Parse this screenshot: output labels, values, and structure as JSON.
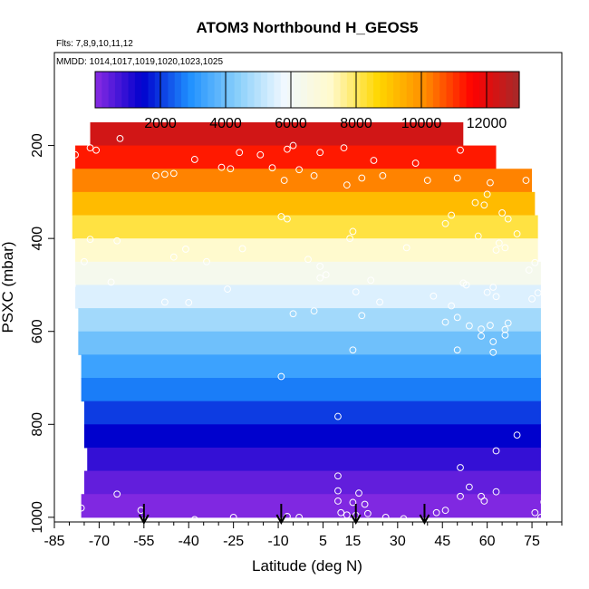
{
  "chart_data": {
    "type": "heatmap",
    "title": "ATOM3 Northbound H_GEOS5",
    "subtitle_flights": "Flts: 7,8,9,10,11,12",
    "subtitle_dates": "MMDD: 1014,1017,1019,1020,1023,1025",
    "xlabel": "Latitude (deg N)",
    "ylabel": "PSXC (mbar)",
    "xlim": [
      -85,
      85
    ],
    "ylim": [
      1010,
      0
    ],
    "x_ticks": [
      -85,
      -70,
      -55,
      -40,
      -25,
      -10,
      5,
      15,
      30,
      45,
      60,
      75
    ],
    "y_ticks": [
      200,
      400,
      600,
      800,
      1000
    ],
    "colorbar": {
      "min": 0,
      "max": 13000,
      "ticks": [
        2000,
        4000,
        6000,
        8000,
        10000,
        12000
      ],
      "colors": [
        "#8a2be2",
        "#0000cd",
        "#1e90ff",
        "#87cefa",
        "#f0f8ff",
        "#fffacd",
        "#ffd700",
        "#ff8c00",
        "#ff0000",
        "#a52a2a"
      ]
    },
    "grid": false,
    "pressure_levels_mbar": [
      175,
      225,
      275,
      325,
      375,
      425,
      475,
      525,
      575,
      625,
      675,
      725,
      775,
      825,
      875,
      925,
      975
    ],
    "altitude_values_m": [
      12300,
      11300,
      10200,
      9200,
      8200,
      7200,
      6300,
      5500,
      4700,
      4000,
      3300,
      2700,
      2050,
      1450,
      900,
      420,
      100
    ],
    "level_lat_extent": [
      [
        -73,
        52
      ],
      [
        -78,
        63
      ],
      [
        -79,
        75
      ],
      [
        -79,
        76
      ],
      [
        -79,
        77
      ],
      [
        -78,
        77
      ],
      [
        -78,
        78
      ],
      [
        -78,
        78
      ],
      [
        -77,
        78
      ],
      [
        -77,
        78
      ],
      [
        -76,
        78
      ],
      [
        -76,
        78
      ],
      [
        -75,
        78
      ],
      [
        -75,
        78
      ],
      [
        -74,
        78
      ],
      [
        -75,
        78
      ],
      [
        -76,
        78
      ]
    ],
    "profile_markers_lat": [
      -55,
      -9,
      16,
      39
    ],
    "obs_points": [
      {
        "lat": -63,
        "p": 185
      },
      {
        "lat": -71,
        "p": 210
      },
      {
        "lat": -73,
        "p": 205
      },
      {
        "lat": -78,
        "p": 220
      },
      {
        "lat": -38,
        "p": 230
      },
      {
        "lat": -23,
        "p": 215
      },
      {
        "lat": -16,
        "p": 220
      },
      {
        "lat": -5,
        "p": 200
      },
      {
        "lat": -7,
        "p": 208
      },
      {
        "lat": 4,
        "p": 215
      },
      {
        "lat": 12,
        "p": 205
      },
      {
        "lat": 22,
        "p": 232
      },
      {
        "lat": 36,
        "p": 238
      },
      {
        "lat": 51,
        "p": 210
      },
      {
        "lat": -48,
        "p": 262
      },
      {
        "lat": -51,
        "p": 265
      },
      {
        "lat": -45,
        "p": 260
      },
      {
        "lat": -29,
        "p": 247
      },
      {
        "lat": -26,
        "p": 250
      },
      {
        "lat": -12,
        "p": 248
      },
      {
        "lat": -3,
        "p": 252
      },
      {
        "lat": 2,
        "p": 265
      },
      {
        "lat": -8,
        "p": 275
      },
      {
        "lat": 18,
        "p": 270
      },
      {
        "lat": 25,
        "p": 265
      },
      {
        "lat": 13,
        "p": 285
      },
      {
        "lat": 40,
        "p": 275
      },
      {
        "lat": 50,
        "p": 270
      },
      {
        "lat": 61,
        "p": 280
      },
      {
        "lat": 73,
        "p": 275
      },
      {
        "lat": 60,
        "p": 305
      },
      {
        "lat": 59,
        "p": 328
      },
      {
        "lat": 56,
        "p": 323
      },
      {
        "lat": -9,
        "p": 353
      },
      {
        "lat": -7,
        "p": 358
      },
      {
        "lat": 48,
        "p": 350
      },
      {
        "lat": 65,
        "p": 345
      },
      {
        "lat": 67,
        "p": 358
      },
      {
        "lat": 46,
        "p": 368
      },
      {
        "lat": 15,
        "p": 385
      },
      {
        "lat": 14,
        "p": 400
      },
      {
        "lat": 70,
        "p": 390
      },
      {
        "lat": 57,
        "p": 395
      },
      {
        "lat": -73,
        "p": 402
      },
      {
        "lat": -64,
        "p": 405
      },
      {
        "lat": -41,
        "p": 423
      },
      {
        "lat": -22,
        "p": 422
      },
      {
        "lat": 33,
        "p": 420
      },
      {
        "lat": 64,
        "p": 410
      },
      {
        "lat": 66,
        "p": 420
      },
      {
        "lat": -75,
        "p": 450
      },
      {
        "lat": -45,
        "p": 440
      },
      {
        "lat": -34,
        "p": 450
      },
      {
        "lat": 0,
        "p": 445
      },
      {
        "lat": 4,
        "p": 460
      },
      {
        "lat": 63,
        "p": 425
      },
      {
        "lat": 76,
        "p": 452
      },
      {
        "lat": -66,
        "p": 494
      },
      {
        "lat": 4,
        "p": 485
      },
      {
        "lat": 6,
        "p": 478
      },
      {
        "lat": 21,
        "p": 490
      },
      {
        "lat": 74,
        "p": 468
      },
      {
        "lat": -79,
        "p": 501
      },
      {
        "lat": -27,
        "p": 509
      },
      {
        "lat": 16,
        "p": 515
      },
      {
        "lat": 52,
        "p": 496
      },
      {
        "lat": 53,
        "p": 500
      },
      {
        "lat": 42,
        "p": 524
      },
      {
        "lat": 60,
        "p": 516
      },
      {
        "lat": 62,
        "p": 505
      },
      {
        "lat": 63,
        "p": 525
      },
      {
        "lat": 77,
        "p": 517
      },
      {
        "lat": -48,
        "p": 537
      },
      {
        "lat": -40,
        "p": 538
      },
      {
        "lat": 24,
        "p": 537
      },
      {
        "lat": 48,
        "p": 545
      },
      {
        "lat": 75,
        "p": 530
      },
      {
        "lat": -5,
        "p": 562
      },
      {
        "lat": 2,
        "p": 556
      },
      {
        "lat": 18,
        "p": 566
      },
      {
        "lat": 50,
        "p": 570
      },
      {
        "lat": 46,
        "p": 580
      },
      {
        "lat": 54,
        "p": 588
      },
      {
        "lat": 58,
        "p": 595
      },
      {
        "lat": 61,
        "p": 587
      },
      {
        "lat": 67,
        "p": 582
      },
      {
        "lat": 66,
        "p": 596
      },
      {
        "lat": 58,
        "p": 610
      },
      {
        "lat": 62,
        "p": 622
      },
      {
        "lat": 66,
        "p": 608
      },
      {
        "lat": 50,
        "p": 640
      },
      {
        "lat": 62,
        "p": 645
      },
      {
        "lat": 15,
        "p": 640
      },
      {
        "lat": -9,
        "p": 697
      },
      {
        "lat": 10,
        "p": 783
      },
      {
        "lat": 70,
        "p": 823
      },
      {
        "lat": 63,
        "p": 857
      },
      {
        "lat": 51,
        "p": 893
      },
      {
        "lat": 10,
        "p": 911
      },
      {
        "lat": 10,
        "p": 943
      },
      {
        "lat": 17,
        "p": 948
      },
      {
        "lat": 54,
        "p": 935
      },
      {
        "lat": 63,
        "p": 945
      },
      {
        "lat": -79,
        "p": 950
      },
      {
        "lat": -64,
        "p": 950
      },
      {
        "lat": 10,
        "p": 965
      },
      {
        "lat": 15,
        "p": 968
      },
      {
        "lat": 19,
        "p": 972
      },
      {
        "lat": 51,
        "p": 955
      },
      {
        "lat": 58,
        "p": 955
      },
      {
        "lat": 59,
        "p": 965
      },
      {
        "lat": 79,
        "p": 967
      },
      {
        "lat": -76,
        "p": 980
      },
      {
        "lat": -56,
        "p": 985
      },
      {
        "lat": -38,
        "p": 1005
      },
      {
        "lat": -25,
        "p": 1000
      },
      {
        "lat": -7,
        "p": 998
      },
      {
        "lat": -3,
        "p": 1000
      },
      {
        "lat": 11,
        "p": 990
      },
      {
        "lat": 13,
        "p": 995
      },
      {
        "lat": 16,
        "p": 996
      },
      {
        "lat": 20,
        "p": 992
      },
      {
        "lat": 26,
        "p": 1000
      },
      {
        "lat": 32,
        "p": 1003
      },
      {
        "lat": 43,
        "p": 990
      },
      {
        "lat": 46,
        "p": 985
      },
      {
        "lat": 76,
        "p": 990
      },
      {
        "lat": 78,
        "p": 1000
      }
    ]
  }
}
